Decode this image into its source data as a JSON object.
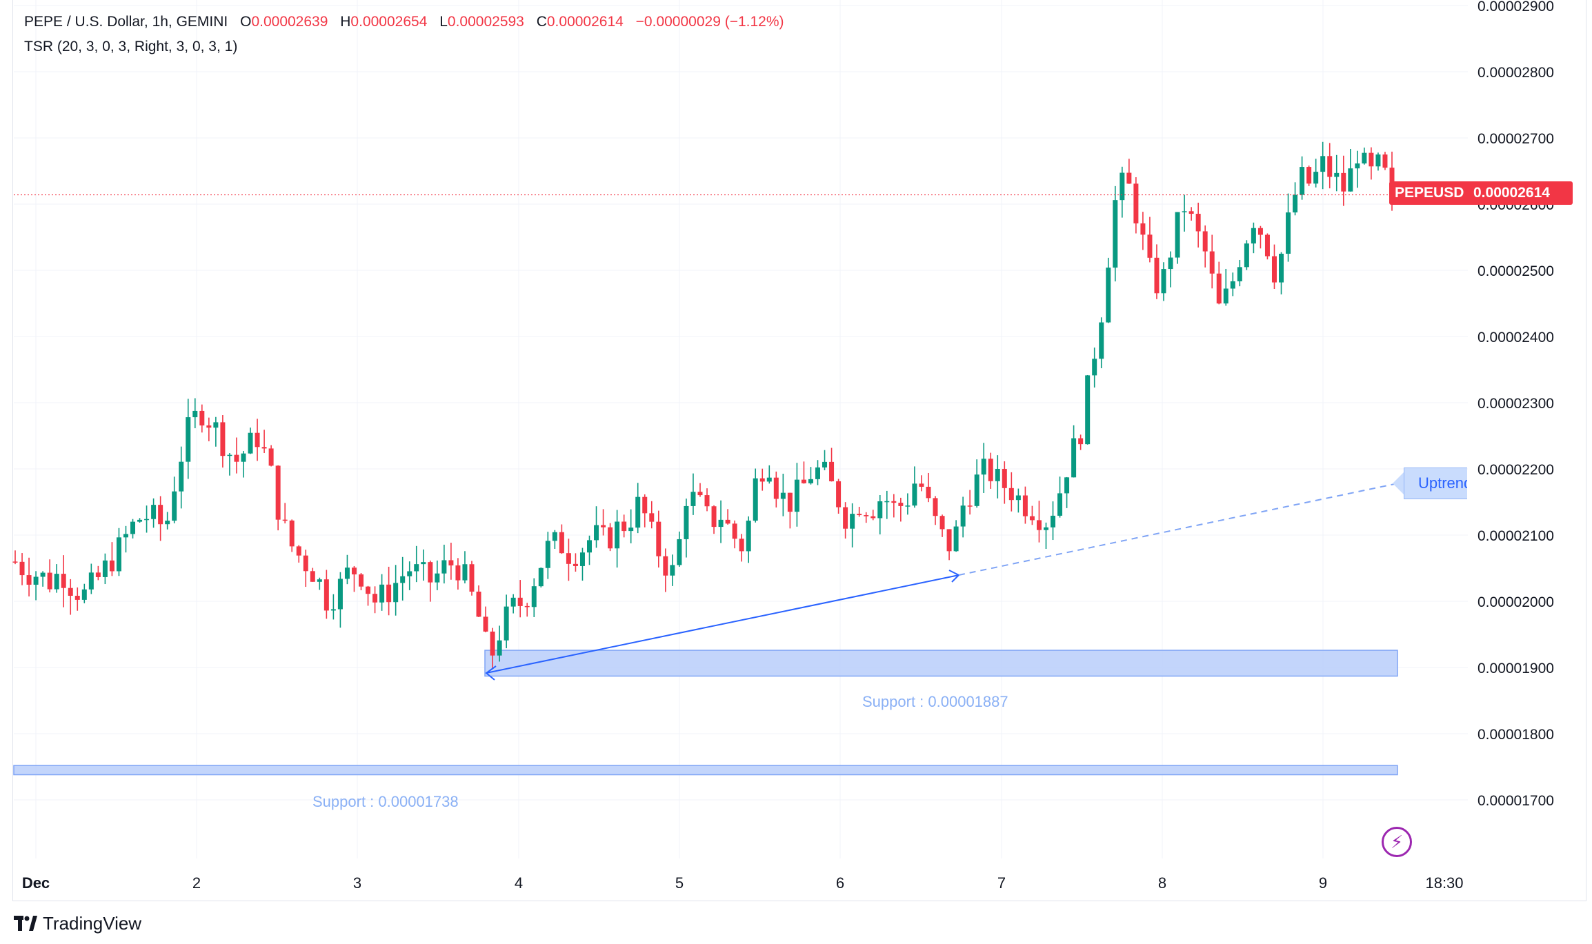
{
  "legend": {
    "symbol": "PEPE / U.S. Dollar, 1h, GEMINI",
    "o_label": "O",
    "o_value": "0.00002639",
    "h_label": "H",
    "h_value": "0.00002654",
    "l_label": "L",
    "l_value": "0.00002593",
    "c_label": "C",
    "c_value": "0.00002614",
    "change": "−0.00000029 (−1.12%)",
    "indicator": "TSR (20, 3, 0, 3, Right, 3, 0, 3, 1)"
  },
  "price_tag": {
    "symbol": "PEPEUSD",
    "value": "0.00002614"
  },
  "annotations": {
    "uptrend_label": "Uptrend",
    "support_upper_label": "Support : 0.00001887",
    "support_lower_label": "Support : 0.00001738"
  },
  "branding": {
    "logo_text": "TradingView",
    "lightning_icon": "lightning-icon"
  },
  "colors": {
    "up": "#089981",
    "down": "#f23645",
    "drawing": "#2962ff",
    "zone": "#bcd0fb"
  },
  "chart_data": {
    "type": "candlestick",
    "symbol": "PEPEUSD",
    "timeframe": "1h",
    "exchange": "GEMINI",
    "x_ticks": [
      "Dec",
      "2",
      "3",
      "4",
      "5",
      "6",
      "7",
      "8",
      "9",
      "18:30"
    ],
    "y_ticks": [
      "0.00002900",
      "0.00002800",
      "0.00002700",
      "0.00002600",
      "0.00002500",
      "0.00002400",
      "0.00002300",
      "0.00002200",
      "0.00002100",
      "0.00002000",
      "0.00001900",
      "0.00001800",
      "0.00001700"
    ],
    "ylim": [
      1.62e-05,
      2.91e-05
    ],
    "last_price": 2.614e-05,
    "trendline_uptrend": {
      "start": [
        "Dec 3 ~19:00",
        1.888e-05
      ],
      "end": [
        "Dec 6 ~18:00",
        2.036e-05
      ]
    },
    "support_zones": [
      {
        "label": "Support : 0.00001887",
        "low": 1.887e-05,
        "high": 1.926e-05
      },
      {
        "label": "Support : 0.00001738",
        "low": 1.738e-05,
        "high": 1.752e-05
      }
    ],
    "close_path": [
      2.06e-05,
      2.045e-05,
      2.04e-05,
      2.03e-05,
      2.045e-05,
      2.02e-05,
      2.01e-05,
      2.03e-05,
      2.055e-05,
      2.08e-05,
      2.11e-05,
      2.13e-05,
      2.125e-05,
      2.11e-05,
      2.2e-05,
      2.26e-05,
      2.29e-05,
      2.27e-05,
      2.24e-05,
      2.21e-05,
      2.23e-05,
      2.25e-05,
      2.2e-05,
      2.12e-05,
      2.08e-05,
      2.06e-05,
      2.04e-05,
      2e-05,
      2.02e-05,
      2.05e-05,
      2.04e-05,
      2e-05,
      2.01e-05,
      2.03e-05,
      2.05e-05,
      2.04e-05,
      2.03e-05,
      2.05e-05,
      2.06e-05,
      2.03e-05,
      1.98e-05,
      1.91e-05,
      1.96e-05,
      1.99e-05,
      2e-05,
      2.04e-05,
      2.08e-05,
      2.09e-05,
      2.07e-05,
      2.08e-05,
      2.1e-05,
      2.09e-05,
      2.11e-05,
      2.12e-05,
      2.15e-05,
      2.1e-05,
      2.06e-05,
      2.04e-05,
      2.16e-05,
      2.15e-05,
      2.12e-05,
      2.13e-05,
      2.1e-05,
      2.08e-05,
      2.18e-05,
      2.22e-05,
      2.16e-05,
      2.15e-05,
      2.17e-05,
      2.2e-05,
      2.19e-05,
      2.16e-05,
      2.12e-05,
      2.15e-05,
      2.14e-05,
      2.16e-05,
      2.14e-05,
      2.15e-05,
      2.19e-05,
      2.14e-05,
      2.1e-05,
      2.08e-05,
      2.15e-05,
      2.18e-05,
      2.2e-05,
      2.18e-05,
      2.17e-05,
      2.15e-05,
      2.14e-05,
      2.12e-05,
      2.15e-05,
      2.21e-05,
      2.25e-05,
      2.35e-05,
      2.45e-05,
      2.6e-05,
      2.64e-05,
      2.58e-05,
      2.5e-05,
      2.47e-05,
      2.54e-05,
      2.6e-05,
      2.56e-05,
      2.52e-05,
      2.44e-05,
      2.47e-05,
      2.53e-05,
      2.58e-05,
      2.55e-05,
      2.49e-05,
      2.57e-05,
      2.64e-05,
      2.63e-05,
      2.66e-05,
      2.64e-05,
      2.62e-05,
      2.68e-05,
      2.64e-05,
      2.66e-05,
      2.614e-05
    ]
  }
}
